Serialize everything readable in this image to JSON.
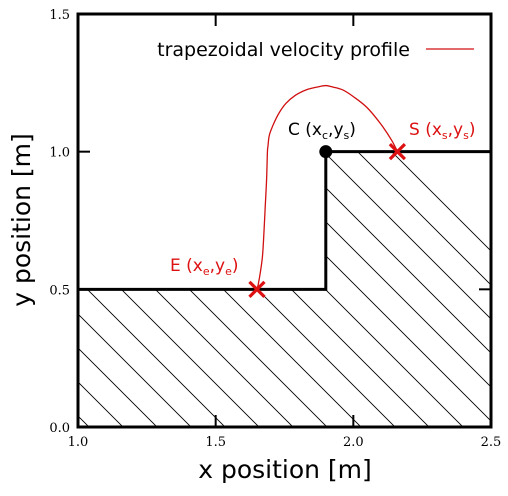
{
  "chart_data": {
    "type": "line",
    "xlabel": "x position [m]",
    "ylabel": "y position [m]",
    "xlim": [
      1.0,
      2.5
    ],
    "ylim": [
      0.0,
      1.5
    ],
    "x_ticks": [
      "1.0",
      "1.5",
      "2.0",
      "2.5"
    ],
    "y_ticks": [
      "0.0",
      "0.5",
      "1.0",
      "1.5"
    ],
    "x_tick_values": [
      1.0,
      1.5,
      2.0,
      2.5
    ],
    "y_tick_values": [
      0.0,
      0.5,
      1.0,
      1.5
    ],
    "legend": {
      "label": "trapezoidal velocity profile",
      "color": "#d01010",
      "position": "top"
    },
    "colors": {
      "path": "#d01010",
      "marker": "#dd1111",
      "step": "#000000",
      "hatch": "#000000"
    },
    "step_profile": {
      "x": [
        1.0,
        1.9,
        1.9,
        2.5
      ],
      "y": [
        0.5,
        0.5,
        1.0,
        1.0
      ]
    },
    "path": {
      "name": "trapezoidal velocity profile",
      "x": [
        2.16,
        2.14,
        2.1,
        2.05,
        2.0,
        1.96,
        1.925,
        1.9,
        1.87,
        1.83,
        1.79,
        1.755,
        1.73,
        1.71,
        1.695,
        1.69,
        1.688,
        1.685,
        1.68,
        1.675,
        1.67,
        1.662,
        1.655,
        1.65
      ],
      "y": [
        1.0,
        1.04,
        1.1,
        1.16,
        1.2,
        1.225,
        1.235,
        1.24,
        1.235,
        1.225,
        1.205,
        1.175,
        1.14,
        1.1,
        1.06,
        1.02,
        1.0,
        0.9,
        0.8,
        0.7,
        0.62,
        0.56,
        0.52,
        0.5
      ]
    },
    "points": [
      {
        "id": "C",
        "label": "C",
        "sub1": "c",
        "sub2": "s",
        "x": 1.9,
        "y": 1.0,
        "marker": "dot",
        "color": "#000000"
      },
      {
        "id": "S",
        "label": "S",
        "sub1": "s",
        "sub2": "s",
        "x": 2.16,
        "y": 1.0,
        "marker": "cross",
        "color": "#dd1111"
      },
      {
        "id": "E",
        "label": "E",
        "sub1": "e",
        "sub2": "e",
        "x": 1.65,
        "y": 0.5,
        "marker": "cross",
        "color": "#dd1111"
      }
    ]
  }
}
